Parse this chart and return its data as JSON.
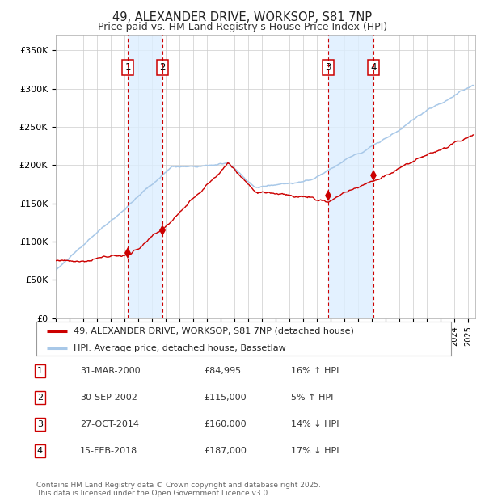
{
  "title": "49, ALEXANDER DRIVE, WORKSOP, S81 7NP",
  "subtitle": "Price paid vs. HM Land Registry's House Price Index (HPI)",
  "ylabel_ticks": [
    "£0",
    "£50K",
    "£100K",
    "£150K",
    "£200K",
    "£250K",
    "£300K",
    "£350K"
  ],
  "ytick_values": [
    0,
    50000,
    100000,
    150000,
    200000,
    250000,
    300000,
    350000
  ],
  "ylim": [
    0,
    370000
  ],
  "xlim_start": 1995.0,
  "xlim_end": 2025.5,
  "purchases": [
    {
      "label": "1",
      "date": 2000.25,
      "price": 84995
    },
    {
      "label": "2",
      "date": 2002.75,
      "price": 115000
    },
    {
      "label": "3",
      "date": 2014.82,
      "price": 160000
    },
    {
      "label": "4",
      "date": 2018.12,
      "price": 187000
    }
  ],
  "legend_entries": [
    "49, ALEXANDER DRIVE, WORKSOP, S81 7NP (detached house)",
    "HPI: Average price, detached house, Bassetlaw"
  ],
  "table_rows": [
    {
      "num": "1",
      "date": "31-MAR-2000",
      "price": "£84,995",
      "pct": "16%",
      "dir": "↑",
      "ref": "HPI"
    },
    {
      "num": "2",
      "date": "30-SEP-2002",
      "price": "£115,000",
      "pct": "5%",
      "dir": "↑",
      "ref": "HPI"
    },
    {
      "num": "3",
      "date": "27-OCT-2014",
      "price": "£160,000",
      "pct": "14%",
      "dir": "↓",
      "ref": "HPI"
    },
    {
      "num": "4",
      "date": "15-FEB-2018",
      "price": "£187,000",
      "pct": "17%",
      "dir": "↓",
      "ref": "HPI"
    }
  ],
  "footnote": "Contains HM Land Registry data © Crown copyright and database right 2025.\nThis data is licensed under the Open Government Licence v3.0.",
  "hpi_color": "#a8c8e8",
  "price_color": "#cc0000",
  "marker_color": "#cc0000",
  "bg_color": "#ffffff",
  "grid_color": "#cccccc",
  "shade_color": "#ddeeff",
  "dashed_color": "#cc0000",
  "hpi_seed": 10,
  "prop_seed": 77
}
